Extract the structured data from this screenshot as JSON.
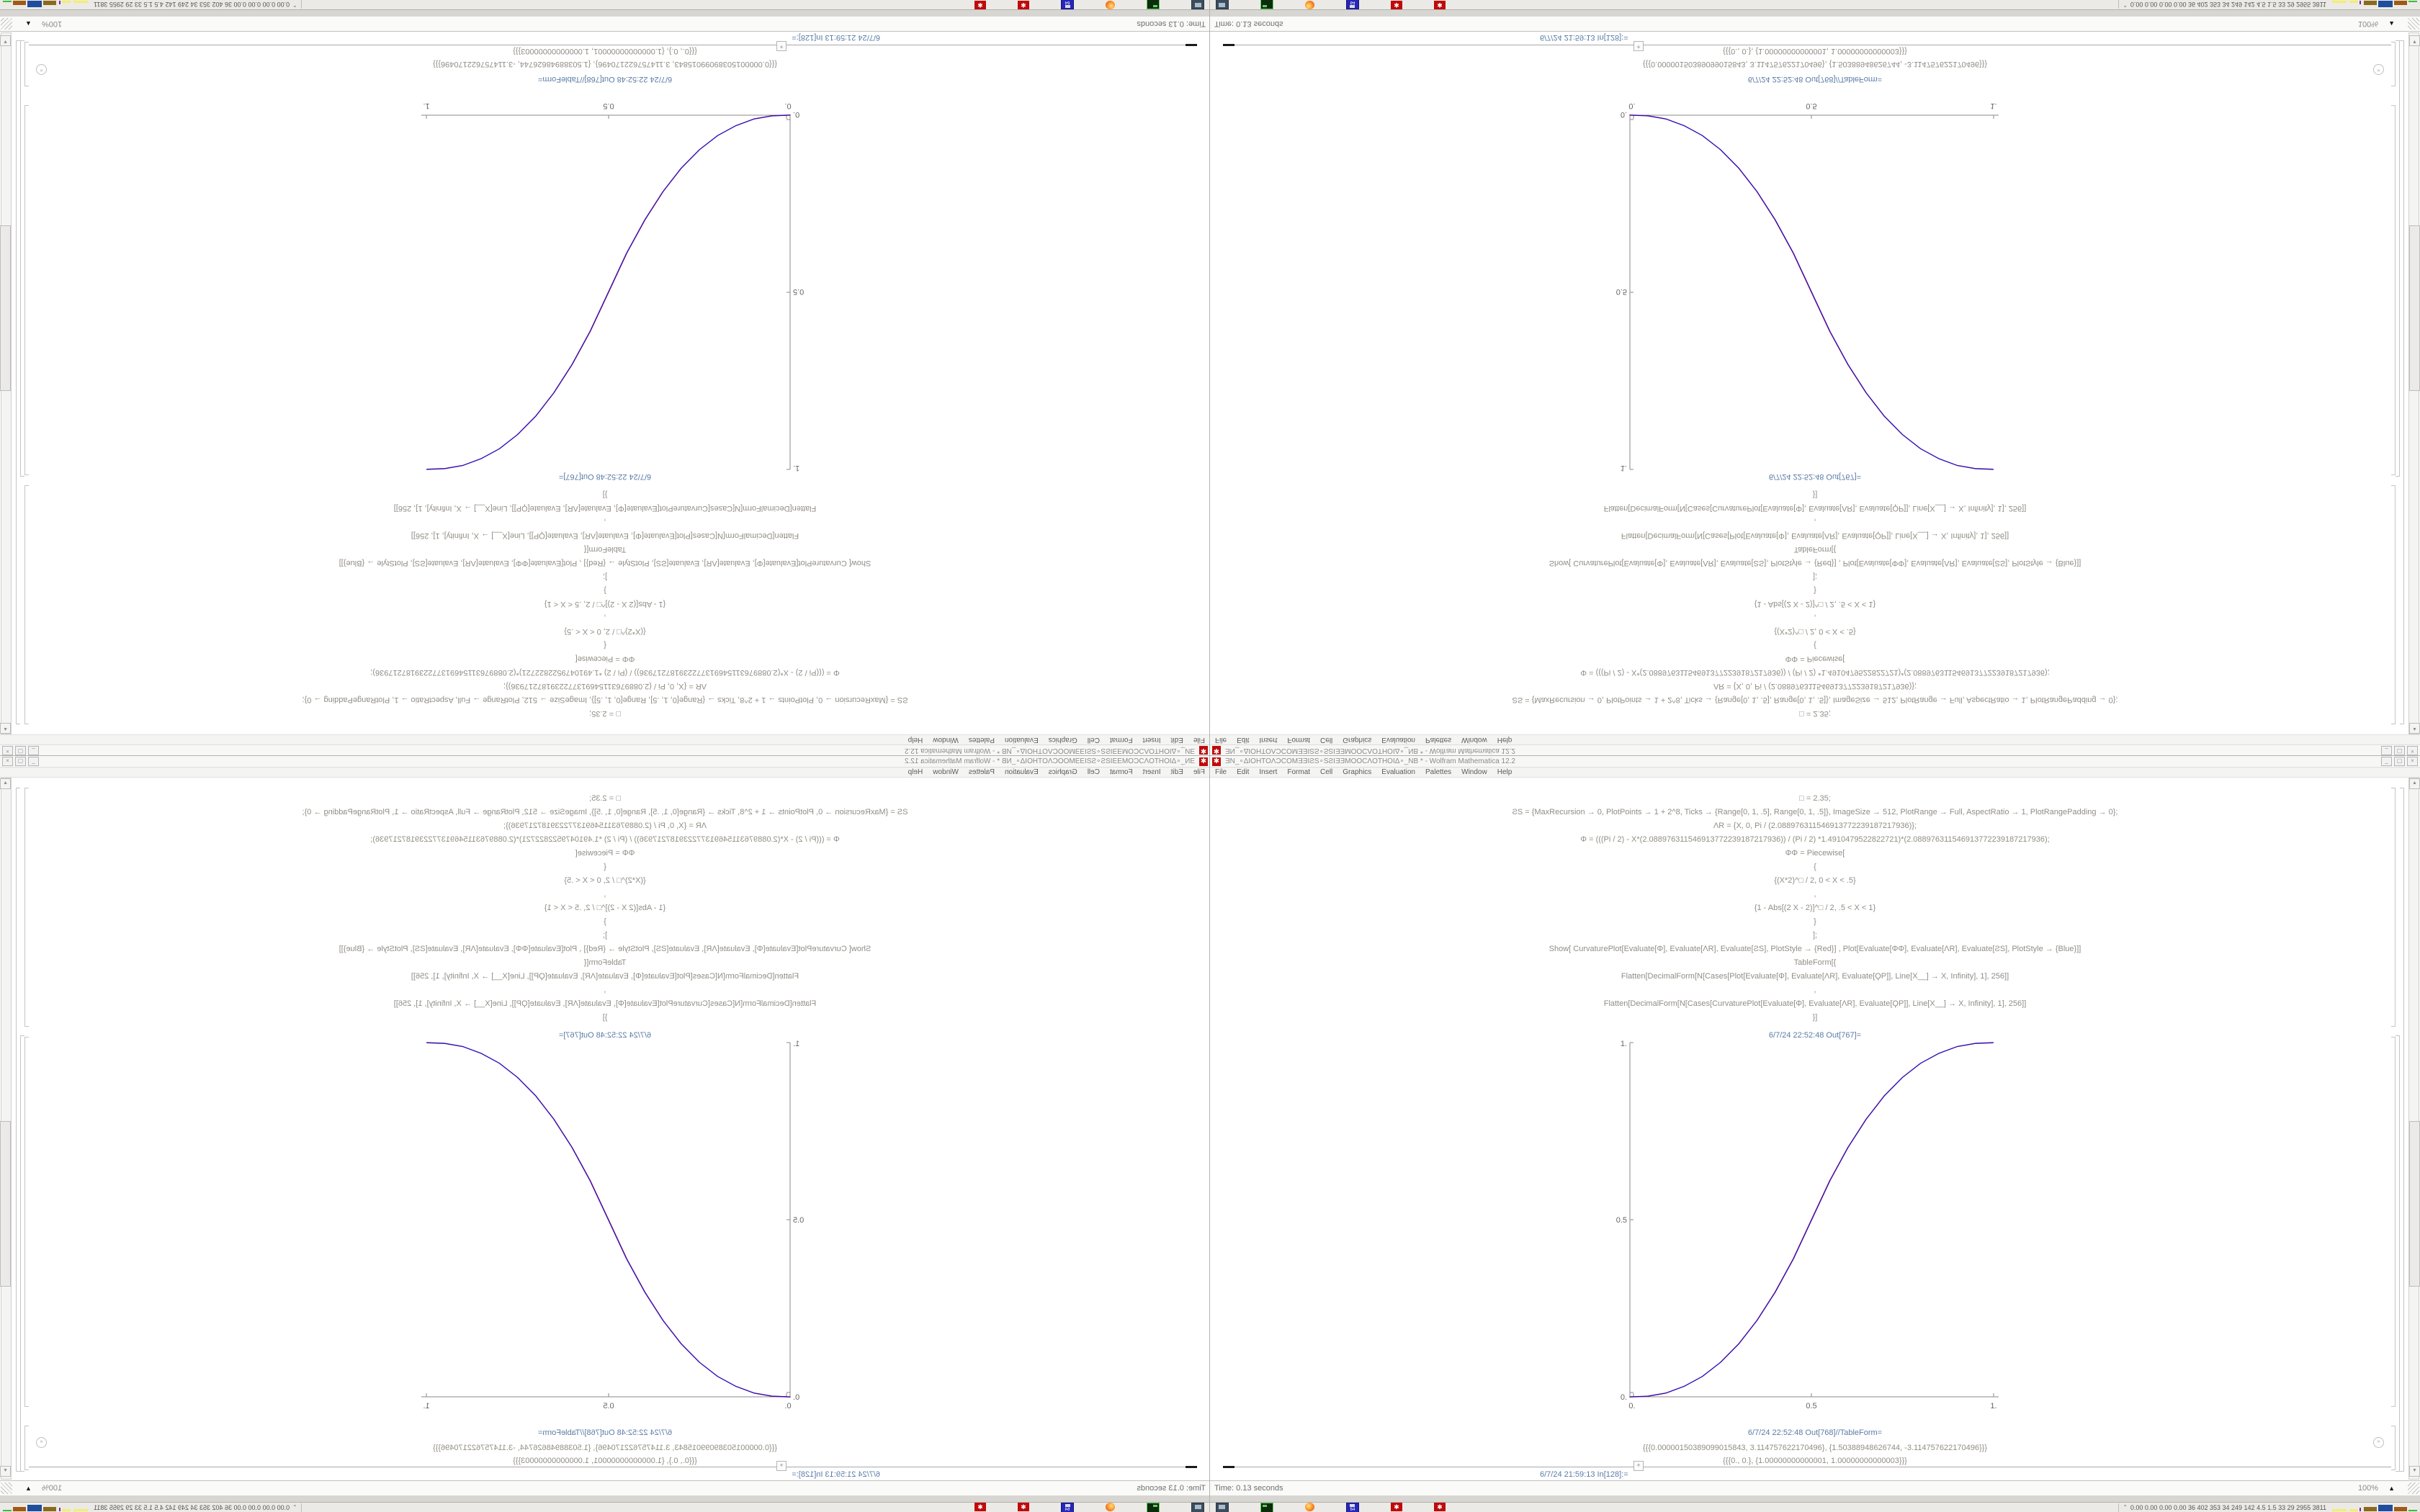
{
  "quadrants": [
    {
      "position": "top-left",
      "orientation": "rotated-180"
    },
    {
      "position": "top-right",
      "orientation": "flipped-vertical"
    },
    {
      "position": "bottom-left",
      "orientation": "flipped-horizontal"
    },
    {
      "position": "bottom-right",
      "orientation": "normal"
    }
  ],
  "window": {
    "title": "ƎN_∘ΔIOHTOΛƆCOMƎƎIƧS∘SƧIƎƎMOOCΛOTHOIΔ∘_NB * - Wolfram Mathematica 12.2",
    "app_icon": "mathematica-spikey-icon",
    "spikey_glyph": "✱",
    "buttons": {
      "minimize": "_",
      "maximize": "▢",
      "close": "×"
    }
  },
  "menu": {
    "items": [
      "File",
      "Edit",
      "Insert",
      "Format",
      "Cell",
      "Graphics",
      "Evaluation",
      "Palettes",
      "Window",
      "Help"
    ]
  },
  "notebook": {
    "code_lines": [
      "□ = 2.35;",
      "ƧS = {MaxRecursion → 0, PlotPoints → 1 + 2^8, Ticks → {Range[0, 1, .5], Range[0, 1, .5]}, ImageSize → 512, PlotRange → Full, AspectRatio → 1, PlotRangePadding → 0};",
      "ΛR = {X, 0, Pi / (2.088976311546913772239187217936)};",
      "Φ = (((Pi / 2) - X*(2.088976311546913772239187217936)) / (Pi / 2) *1.4910479522822721)*(2.088976311546913772239187217936);",
      "ΦΦ = Piecewise[",
      "{",
      "{(X*2)^□ / 2, 0 < X < .5}",
      ",",
      "{1 - Abs[(2 X - 2)]^□ / 2, .5 < X < 1}",
      "}",
      "];",
      "Show[  CurvaturePlot[Evaluate[Φ], Evaluate[ΛR], Evaluate[ƧS], PlotStyle → {Red}]  ,  Plot[Evaluate[ΦΦ], Evaluate[ΛR], Evaluate[ƧS], PlotStyle → {Blue}]]",
      "TableForm[{",
      "Flatten[DecimalForm[N[Cases[Plot[Evaluate[Φ], Evaluate[ΛR], Evaluate[ϘP]], Line[X__] → X, Infinity], 1], 256]]",
      ",",
      "Flatten[DecimalForm[N[Cases[CurvaturePlot[Evaluate[Φ], Evaluate[ΛR], Evaluate[ϘP]], Line[X__] → X, Infinity], 1], 256]]",
      "}]"
    ],
    "out_plot_label": "6/7/24 22:52:48 Out[767]=",
    "out_table_label": "6/7/24 22:52:48 Out[768]//TableForm=",
    "table_rows": [
      "{{{0.00000150389099015843, 3.114757622170496}, {1.50388948626744, -3.114757622170496}}}",
      "{{{0., 0.}, {1.00000000000001, 1.00000000000003}}}"
    ],
    "next_in_label": "6/7/24 21:59:13 In[128]:=",
    "insert_plus": "+",
    "elide_glyph": "»"
  },
  "statusbar": {
    "left": "Time: 0.13 seconds",
    "zoom": "100%",
    "zoom_tri": "▲"
  },
  "panel": {
    "icons": [
      "display-icon",
      "terminal-icon",
      "firefox-icon",
      "floppy-64-icon",
      "mathematica-spikey-icon",
      "mathematica-spikey-icon"
    ],
    "floppy_label": "64",
    "spikey_glyph": "✱",
    "collapse_glyph": "⌃",
    "stats": "0.00 0.00 0.00 0.00   36   402   353   34   249   142   4.5   1.5   33   29   2955 3811"
  },
  "chart_data": {
    "type": "line",
    "title": "",
    "xlabel": "",
    "ylabel": "",
    "xlim": [
      0,
      1
    ],
    "ylim": [
      0,
      1
    ],
    "x_ticks": [
      "0.",
      "0.5",
      "1."
    ],
    "y_ticks": [
      "0.",
      "0.5",
      "1."
    ],
    "grid": false,
    "legend": "none",
    "description": "Two nearly coincident sigmoid curves: y=(2x)^2.35/2 for 0<x<0.5 and y=1-(2-2x)^2.35/2 for 0.5<x<1",
    "series": [
      {
        "name": "CurvaturePlot (Red)",
        "color": "#dd1111",
        "points": [
          [
            0,
            0
          ],
          [
            0.05,
            0.002
          ],
          [
            0.1,
            0.011
          ],
          [
            0.15,
            0.03
          ],
          [
            0.2,
            0.058
          ],
          [
            0.25,
            0.098
          ],
          [
            0.3,
            0.15
          ],
          [
            0.35,
            0.216
          ],
          [
            0.4,
            0.296
          ],
          [
            0.45,
            0.39
          ],
          [
            0.5,
            0.5
          ],
          [
            0.55,
            0.61
          ],
          [
            0.6,
            0.704
          ],
          [
            0.65,
            0.784
          ],
          [
            0.7,
            0.85
          ],
          [
            0.75,
            0.902
          ],
          [
            0.8,
            0.942
          ],
          [
            0.85,
            0.97
          ],
          [
            0.9,
            0.989
          ],
          [
            0.95,
            0.998
          ],
          [
            1,
            1
          ]
        ]
      },
      {
        "name": "Plot ΦΦ (Blue)",
        "color": "#1c12d2",
        "points": [
          [
            0,
            0
          ],
          [
            0.05,
            0.002
          ],
          [
            0.1,
            0.011
          ],
          [
            0.15,
            0.03
          ],
          [
            0.2,
            0.058
          ],
          [
            0.25,
            0.098
          ],
          [
            0.3,
            0.15
          ],
          [
            0.35,
            0.216
          ],
          [
            0.4,
            0.296
          ],
          [
            0.45,
            0.39
          ],
          [
            0.5,
            0.5
          ],
          [
            0.55,
            0.61
          ],
          [
            0.6,
            0.704
          ],
          [
            0.65,
            0.784
          ],
          [
            0.7,
            0.85
          ],
          [
            0.75,
            0.902
          ],
          [
            0.8,
            0.942
          ],
          [
            0.85,
            0.97
          ],
          [
            0.9,
            0.989
          ],
          [
            0.95,
            0.998
          ],
          [
            1,
            1
          ]
        ]
      }
    ]
  },
  "colors": {
    "spikey_red": "#c00a0a",
    "label_blue": "#5a7ca6",
    "code_gray": "#918d85"
  }
}
